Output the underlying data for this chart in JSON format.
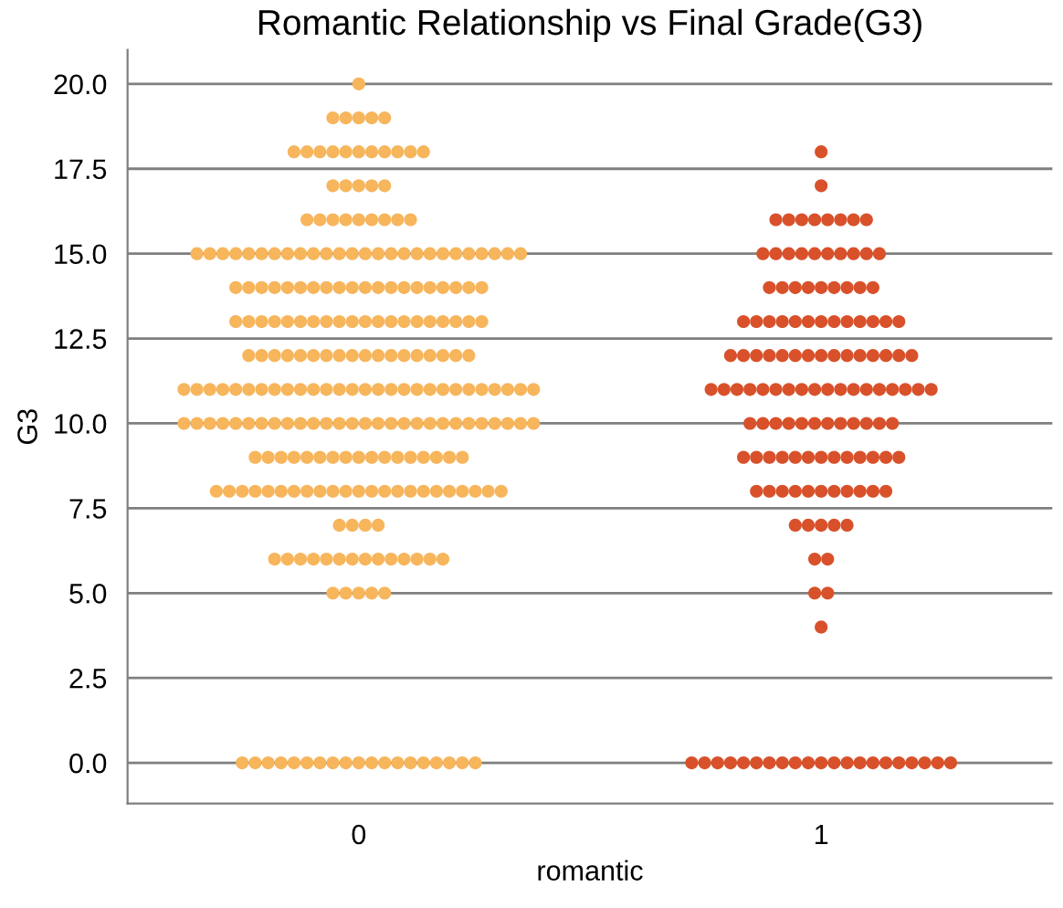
{
  "chart_data": {
    "type": "scatter",
    "title": "Romantic Relationship vs Final Grade(G3)",
    "xlabel": "romantic",
    "ylabel": "G3",
    "categories": [
      "0",
      "1"
    ],
    "ylim": [
      -1.2,
      21.0
    ],
    "yticks": [
      {
        "value": 0,
        "label": "0.0"
      },
      {
        "value": 2.5,
        "label": "2.5"
      },
      {
        "value": 5,
        "label": "5.0"
      },
      {
        "value": 7.5,
        "label": "7.5"
      },
      {
        "value": 10,
        "label": "10.0"
      },
      {
        "value": 12.5,
        "label": "12.5"
      },
      {
        "value": 15,
        "label": "15.0"
      },
      {
        "value": 17.5,
        "label": "17.5"
      },
      {
        "value": 20,
        "label": "20.0"
      }
    ],
    "grid": "y",
    "marker": "circle",
    "series": [
      {
        "color": "#f7b55c",
        "x": [
          "0",
          "0",
          "0",
          "0",
          "0",
          "0",
          "0",
          "0",
          "0",
          "0",
          "0",
          "0",
          "0",
          "0",
          "0",
          "0",
          "0",
          "0",
          "0",
          "0",
          "0",
          "0",
          "0",
          "0",
          "0",
          "0",
          "0",
          "0",
          "0",
          "0",
          "0",
          "0",
          "0",
          "0",
          "0",
          "0",
          "0",
          "0",
          "0",
          "0",
          "0",
          "0",
          "0",
          "0",
          "0",
          "0",
          "0",
          "0",
          "0",
          "0",
          "0",
          "0",
          "0",
          "0",
          "0",
          "0",
          "0",
          "0",
          "0",
          "0",
          "0",
          "0",
          "0",
          "0",
          "0",
          "0",
          "0",
          "0",
          "0",
          "0",
          "0",
          "0",
          "0",
          "0",
          "0",
          "0",
          "0",
          "0",
          "0",
          "0",
          "0",
          "0",
          "0",
          "0",
          "0",
          "0",
          "0",
          "0",
          "0",
          "0",
          "0",
          "0",
          "0",
          "0",
          "0",
          "0",
          "0",
          "0",
          "0",
          "0",
          "0",
          "0",
          "0",
          "0",
          "0",
          "0",
          "0",
          "0",
          "0",
          "0",
          "0",
          "0",
          "0",
          "0",
          "0",
          "0",
          "0",
          "0",
          "0",
          "0",
          "0",
          "0",
          "0",
          "0",
          "0",
          "0",
          "0",
          "0",
          "0",
          "0",
          "0",
          "0",
          "0",
          "0",
          "0",
          "0",
          "0",
          "0",
          "0",
          "0",
          "0",
          "0",
          "0",
          "0",
          "0",
          "0",
          "0",
          "0",
          "0",
          "0",
          "0",
          "0",
          "0",
          "0",
          "0",
          "0",
          "0",
          "0",
          "0",
          "0",
          "0",
          "0",
          "0",
          "0",
          "0",
          "0",
          "0",
          "0",
          "0",
          "0",
          "0",
          "0",
          "0",
          "0",
          "0",
          "0",
          "0",
          "0",
          "0",
          "0",
          "0",
          "0",
          "0",
          "0",
          "0",
          "0",
          "0",
          "0",
          "0",
          "0",
          "0",
          "0",
          "0",
          "0",
          "0",
          "0",
          "0",
          "0",
          "0",
          "0",
          "0",
          "0",
          "0",
          "0",
          "0",
          "0",
          "0",
          "0",
          "0",
          "0",
          "0",
          "0",
          "0",
          "0",
          "0",
          "0",
          "0",
          "0",
          "0",
          "0",
          "0",
          "0",
          "0",
          "0",
          "0",
          "0",
          "0",
          "0",
          "0",
          "0",
          "0",
          "0",
          "0",
          "0",
          "0",
          "0",
          "0",
          "0",
          "0",
          "0",
          "0",
          "0",
          "0",
          "0",
          "0",
          "0",
          "0",
          "0",
          "0",
          "0",
          "0",
          "0",
          "0"
        ],
        "values": [
          20,
          19,
          19,
          19,
          19,
          19,
          18,
          18,
          18,
          18,
          18,
          18,
          18,
          18,
          18,
          18,
          18,
          17,
          17,
          17,
          17,
          17,
          16,
          16,
          16,
          16,
          16,
          16,
          16,
          16,
          16,
          15,
          15,
          15,
          15,
          15,
          15,
          15,
          15,
          15,
          15,
          15,
          15,
          15,
          15,
          15,
          15,
          15,
          15,
          15,
          15,
          15,
          15,
          15,
          15,
          15,
          15,
          14,
          14,
          14,
          14,
          14,
          14,
          14,
          14,
          14,
          14,
          14,
          14,
          14,
          14,
          14,
          14,
          14,
          14,
          14,
          14,
          13,
          13,
          13,
          13,
          13,
          13,
          13,
          13,
          13,
          13,
          13,
          13,
          13,
          13,
          13,
          13,
          13,
          13,
          13,
          13,
          12,
          12,
          12,
          12,
          12,
          12,
          12,
          12,
          12,
          12,
          12,
          12,
          12,
          12,
          12,
          12,
          12,
          12,
          11,
          11,
          11,
          11,
          11,
          11,
          11,
          11,
          11,
          11,
          11,
          11,
          11,
          11,
          11,
          11,
          11,
          11,
          11,
          11,
          11,
          11,
          11,
          11,
          11,
          11,
          11,
          11,
          10,
          10,
          10,
          10,
          10,
          10,
          10,
          10,
          10,
          10,
          10,
          10,
          10,
          10,
          10,
          10,
          10,
          10,
          10,
          10,
          10,
          10,
          10,
          10,
          10,
          10,
          10,
          10,
          9,
          9,
          9,
          9,
          9,
          9,
          9,
          9,
          9,
          9,
          9,
          9,
          9,
          9,
          9,
          9,
          9,
          8,
          8,
          8,
          8,
          8,
          8,
          8,
          8,
          8,
          8,
          8,
          8,
          8,
          8,
          8,
          8,
          8,
          8,
          8,
          8,
          8,
          8,
          8,
          7,
          7,
          7,
          7,
          6,
          6,
          6,
          6,
          6,
          6,
          6,
          6,
          6,
          6,
          6,
          6,
          6,
          6,
          5,
          5,
          5,
          5,
          5,
          0,
          0,
          0,
          0,
          0,
          0,
          0,
          0,
          0,
          0,
          0,
          0,
          0,
          0,
          0,
          0,
          0,
          0,
          0
        ]
      },
      {
        "color": "#d8512b",
        "x": [
          "1",
          "1",
          "1",
          "1",
          "1",
          "1",
          "1",
          "1",
          "1",
          "1",
          "1",
          "1",
          "1",
          "1",
          "1",
          "1",
          "1",
          "1",
          "1",
          "1",
          "1",
          "1",
          "1",
          "1",
          "1",
          "1",
          "1",
          "1",
          "1",
          "1",
          "1",
          "1",
          "1",
          "1",
          "1",
          "1",
          "1",
          "1",
          "1",
          "1",
          "1",
          "1",
          "1",
          "1",
          "1",
          "1",
          "1",
          "1",
          "1",
          "1",
          "1",
          "1",
          "1",
          "1",
          "1",
          "1",
          "1",
          "1",
          "1",
          "1",
          "1",
          "1",
          "1",
          "1",
          "1",
          "1",
          "1",
          "1",
          "1",
          "1",
          "1",
          "1",
          "1",
          "1",
          "1",
          "1",
          "1",
          "1",
          "1",
          "1",
          "1",
          "1",
          "1",
          "1",
          "1",
          "1",
          "1",
          "1",
          "1",
          "1",
          "1",
          "1",
          "1",
          "1",
          "1",
          "1",
          "1",
          "1",
          "1",
          "1",
          "1",
          "1",
          "1",
          "1",
          "1",
          "1",
          "1",
          "1",
          "1",
          "1",
          "1",
          "1",
          "1",
          "1",
          "1",
          "1",
          "1",
          "1",
          "1",
          "1",
          "1",
          "1",
          "1",
          "1",
          "1",
          "1",
          "1",
          "1",
          "1",
          "1",
          "1",
          "1",
          "1",
          "1",
          "1",
          "1",
          "1",
          "1",
          "1",
          "1",
          "1",
          "1"
        ],
        "values": [
          18,
          17,
          16,
          16,
          16,
          16,
          16,
          16,
          16,
          16,
          15,
          15,
          15,
          15,
          15,
          15,
          15,
          15,
          15,
          15,
          14,
          14,
          14,
          14,
          14,
          14,
          14,
          14,
          14,
          13,
          13,
          13,
          13,
          13,
          13,
          13,
          13,
          13,
          13,
          13,
          13,
          13,
          12,
          12,
          12,
          12,
          12,
          12,
          12,
          12,
          12,
          12,
          12,
          12,
          12,
          12,
          12,
          11,
          11,
          11,
          11,
          11,
          11,
          11,
          11,
          11,
          11,
          11,
          11,
          11,
          11,
          11,
          11,
          11,
          11,
          10,
          10,
          10,
          10,
          10,
          10,
          10,
          10,
          10,
          10,
          10,
          10,
          9,
          9,
          9,
          9,
          9,
          9,
          9,
          9,
          9,
          9,
          9,
          9,
          9,
          8,
          8,
          8,
          8,
          8,
          8,
          8,
          8,
          8,
          8,
          8,
          7,
          7,
          7,
          7,
          7,
          6,
          6,
          5,
          5,
          4,
          0,
          0,
          0,
          0,
          0,
          0,
          0,
          0,
          0,
          0,
          0,
          0,
          0,
          0,
          0,
          0,
          0,
          0,
          0,
          0,
          0
        ]
      }
    ]
  }
}
